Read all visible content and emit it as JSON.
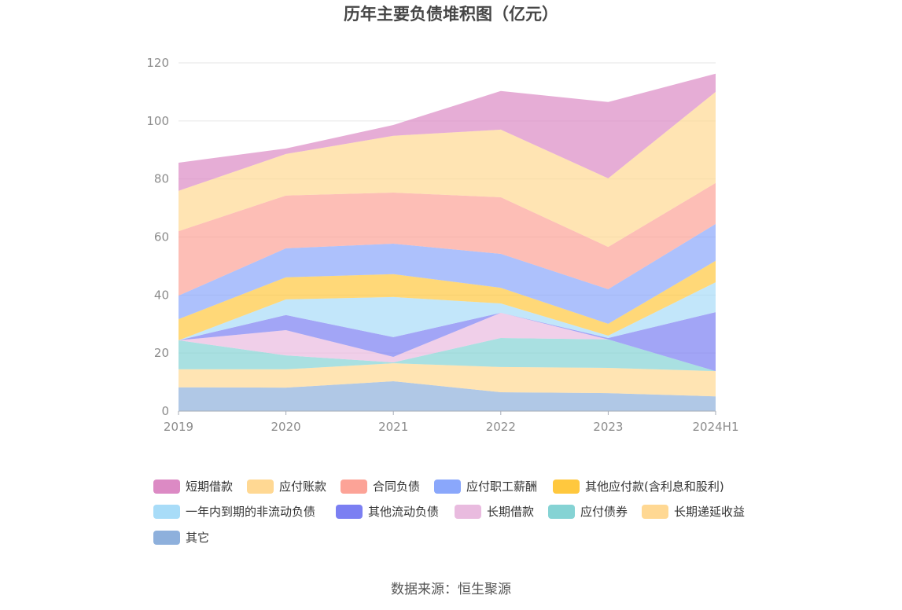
{
  "source": "数据来源：恒生聚源",
  "chart_data": {
    "type": "area",
    "stacked": true,
    "title": "历年主要负债堆积图（亿元）",
    "categories": [
      "2019",
      "2020",
      "2021",
      "2022",
      "2023",
      "2024H1"
    ],
    "ylim": [
      0,
      120
    ],
    "yticks": [
      0,
      20,
      40,
      60,
      80,
      100,
      120
    ],
    "grid": true,
    "legend_position": "bottom",
    "series": [
      {
        "name": "短期借款",
        "color": "#dc8ac4",
        "values": [
          9.7,
          1.9,
          3.7,
          13.3,
          26.3,
          6.3
        ]
      },
      {
        "name": "应付账款",
        "color": "#ffd893",
        "values": [
          13.9,
          14.3,
          19.6,
          23.3,
          23.6,
          31.4
        ]
      },
      {
        "name": "合同负债",
        "color": "#fca397",
        "values": [
          22.2,
          18.2,
          17.6,
          19.5,
          14.6,
          14.1
        ]
      },
      {
        "name": "应付职工薪酬",
        "color": "#8aa7fb",
        "values": [
          8.1,
          10.0,
          10.5,
          11.7,
          11.9,
          12.7
        ]
      },
      {
        "name": "其他应付款(含利息和股利)",
        "color": "#ffc83e",
        "values": [
          7.3,
          7.6,
          7.9,
          5.4,
          4.1,
          7.4
        ]
      },
      {
        "name": "一年内到期的非流动负债",
        "color": "#a8dcf8",
        "values": [
          0,
          5.4,
          13.8,
          3.2,
          0.8,
          10.3
        ]
      },
      {
        "name": "其他流动负债",
        "color": "#7b7ff2",
        "values": [
          0,
          5.2,
          6.8,
          0,
          0.5,
          20.3
        ]
      },
      {
        "name": "长期借款",
        "color": "#e9bbdf",
        "values": [
          0,
          8.7,
          1.9,
          8.7,
          0,
          0
        ]
      },
      {
        "name": "应付债券",
        "color": "#85d3d4",
        "values": [
          10.0,
          4.8,
          0.3,
          10.0,
          9.8,
          0
        ]
      },
      {
        "name": "长期递延收益",
        "color": "#ffd893",
        "values": [
          6.2,
          6.3,
          6.2,
          8.7,
          8.7,
          8.7
        ]
      },
      {
        "name": "其它",
        "color": "#8eb0dc",
        "values": [
          8.2,
          8.1,
          10.3,
          6.5,
          6.2,
          5.1
        ]
      }
    ]
  }
}
